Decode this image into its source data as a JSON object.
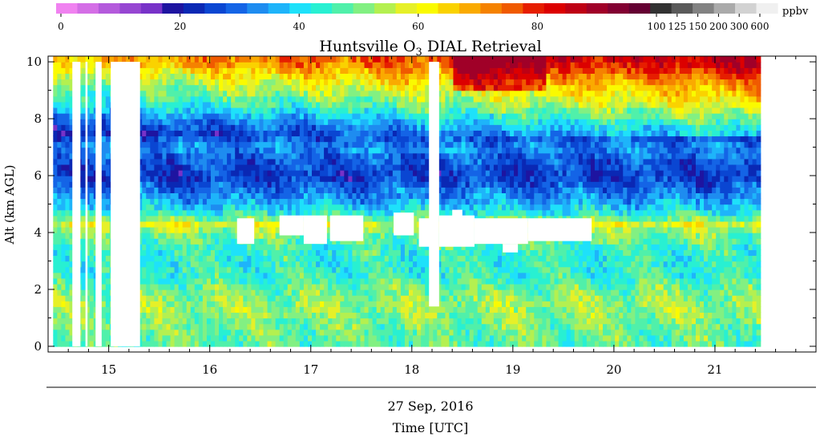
{
  "chart_data": {
    "type": "heatmap",
    "title": "Huntsville O₃ DIAL Retrieval",
    "title_main": "Huntsville O",
    "title_sub": "3",
    "title_rest": " DIAL Retrieval",
    "ylabel": "Alt (km AGL)",
    "xlabel": "Time [UTC]",
    "date_label": "27 Sep, 2016",
    "xlim": [
      14.4,
      22.0
    ],
    "ylim": [
      -0.2,
      10.2
    ],
    "x_ticks": [
      15,
      16,
      17,
      18,
      19,
      20,
      21
    ],
    "x_tick_labels": [
      "15",
      "16",
      "17",
      "18",
      "19",
      "20",
      "21"
    ],
    "y_ticks": [
      0,
      2,
      4,
      6,
      8,
      10
    ],
    "y_tick_labels": [
      "0",
      "2",
      "4",
      "6",
      "8",
      "10"
    ],
    "data_extent": {
      "x": [
        14.45,
        21.42
      ],
      "y": [
        0,
        10
      ]
    },
    "colorbar": {
      "unit": "ppbv",
      "tick_labels": [
        "0",
        "20",
        "40",
        "60",
        "80",
        "100",
        "125",
        "150",
        "200",
        "300",
        "600"
      ],
      "colors": [
        "#f082f0",
        "#d46ee6",
        "#b45adc",
        "#9646d2",
        "#7832c8",
        "#1e14a0",
        "#0a28b4",
        "#0a46d2",
        "#1464e6",
        "#1e8cf0",
        "#1eb4fa",
        "#1ee1fa",
        "#28f0d2",
        "#50f0aa",
        "#82f082",
        "#b4f050",
        "#e6f028",
        "#fafa00",
        "#fad200",
        "#faaa00",
        "#f58200",
        "#f05a00",
        "#e61e00",
        "#dc0000",
        "#be0014",
        "#a00028",
        "#820032",
        "#640032",
        "#323232",
        "#5a5a5a",
        "#828282",
        "#aaaaaa",
        "#d2d2d2",
        "#f0f0f0"
      ]
    },
    "profile": [
      {
        "z": 0.0,
        "v": 54
      },
      {
        "z": 0.5,
        "v": 56
      },
      {
        "z": 1.0,
        "v": 58
      },
      {
        "z": 1.5,
        "v": 60
      },
      {
        "z": 2.0,
        "v": 56
      },
      {
        "z": 2.5,
        "v": 51
      },
      {
        "z": 3.0,
        "v": 50
      },
      {
        "z": 3.5,
        "v": 52
      },
      {
        "z": 4.0,
        "v": 58
      },
      {
        "z": 4.3,
        "v": 66
      },
      {
        "z": 4.6,
        "v": 52
      },
      {
        "z": 5.0,
        "v": 42
      },
      {
        "z": 5.5,
        "v": 35
      },
      {
        "z": 6.0,
        "v": 28
      },
      {
        "z": 6.5,
        "v": 32
      },
      {
        "z": 7.0,
        "v": 38
      },
      {
        "z": 7.5,
        "v": 30
      },
      {
        "z": 8.0,
        "v": 40
      },
      {
        "z": 8.5,
        "v": 52
      },
      {
        "z": 9.0,
        "v": 60
      },
      {
        "z": 9.5,
        "v": 70
      },
      {
        "z": 10.0,
        "v": 82
      }
    ],
    "missing_regions": [
      {
        "x": [
          14.64,
          14.72
        ],
        "y": [
          0,
          10
        ]
      },
      {
        "x": [
          14.87,
          14.93
        ],
        "y": [
          0,
          10
        ]
      },
      {
        "x": [
          15.02,
          15.31
        ],
        "y": [
          0,
          10
        ]
      },
      {
        "x": [
          14.77,
          14.79
        ],
        "y": [
          0,
          10
        ]
      },
      {
        "x": [
          16.27,
          16.44
        ],
        "y": [
          3.6,
          4.5
        ]
      },
      {
        "x": [
          16.69,
          16.93
        ],
        "y": [
          3.9,
          4.6
        ]
      },
      {
        "x": [
          16.93,
          17.16
        ],
        "y": [
          3.6,
          4.6
        ]
      },
      {
        "x": [
          17.19,
          17.52
        ],
        "y": [
          3.7,
          4.6
        ]
      },
      {
        "x": [
          17.82,
          18.02
        ],
        "y": [
          3.9,
          4.7
        ]
      },
      {
        "x": [
          18.07,
          18.19
        ],
        "y": [
          3.5,
          4.5
        ]
      },
      {
        "x": [
          18.17,
          18.27
        ],
        "y": [
          1.4,
          10
        ]
      },
      {
        "x": [
          18.27,
          18.62
        ],
        "y": [
          3.5,
          4.6
        ]
      },
      {
        "x": [
          18.62,
          19.15
        ],
        "y": [
          3.6,
          4.5
        ]
      },
      {
        "x": [
          18.9,
          19.05
        ],
        "y": [
          3.3,
          3.6
        ]
      },
      {
        "x": [
          19.15,
          19.78
        ],
        "y": [
          3.7,
          4.5
        ]
      },
      {
        "x": [
          18.4,
          18.5
        ],
        "y": [
          4.5,
          4.8
        ]
      }
    ]
  }
}
